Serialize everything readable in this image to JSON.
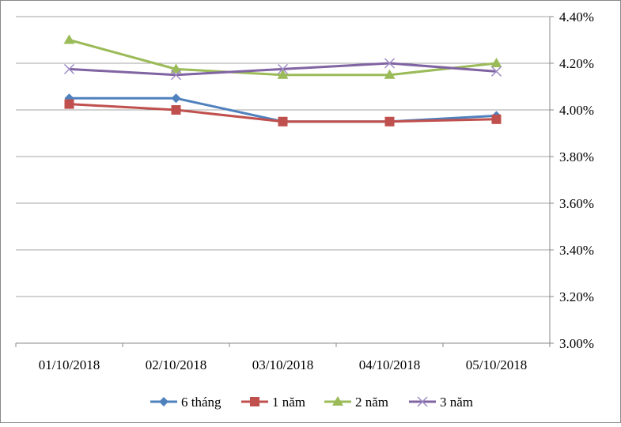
{
  "chart_data": {
    "type": "line",
    "categories": [
      "01/10/2018",
      "02/10/2018",
      "03/10/2018",
      "04/10/2018",
      "05/10/2018"
    ],
    "series": [
      {
        "name": "6 tháng",
        "values": [
          4.05,
          4.05,
          3.95,
          3.95,
          3.975
        ],
        "color": "#4F81BD",
        "marker": "diamond"
      },
      {
        "name": "1 năm",
        "values": [
          4.025,
          4.0,
          3.95,
          3.95,
          3.96
        ],
        "color": "#C0504D",
        "marker": "square"
      },
      {
        "name": "2 năm",
        "values": [
          4.3,
          4.175,
          4.15,
          4.15,
          4.2
        ],
        "color": "#9BBB59",
        "marker": "triangle"
      },
      {
        "name": "3 năm",
        "values": [
          4.175,
          4.15,
          4.175,
          4.2,
          4.165
        ],
        "color": "#8064A2",
        "marker": "x"
      }
    ],
    "yticks": [
      "3.00%",
      "3.20%",
      "3.40%",
      "3.60%",
      "3.80%",
      "4.00%",
      "4.20%",
      "4.40%"
    ],
    "ylim": [
      3.0,
      4.4
    ],
    "y_axis_position": "right",
    "grid": true,
    "legend": "bottom",
    "title": "",
    "xlabel": "",
    "ylabel": ""
  }
}
